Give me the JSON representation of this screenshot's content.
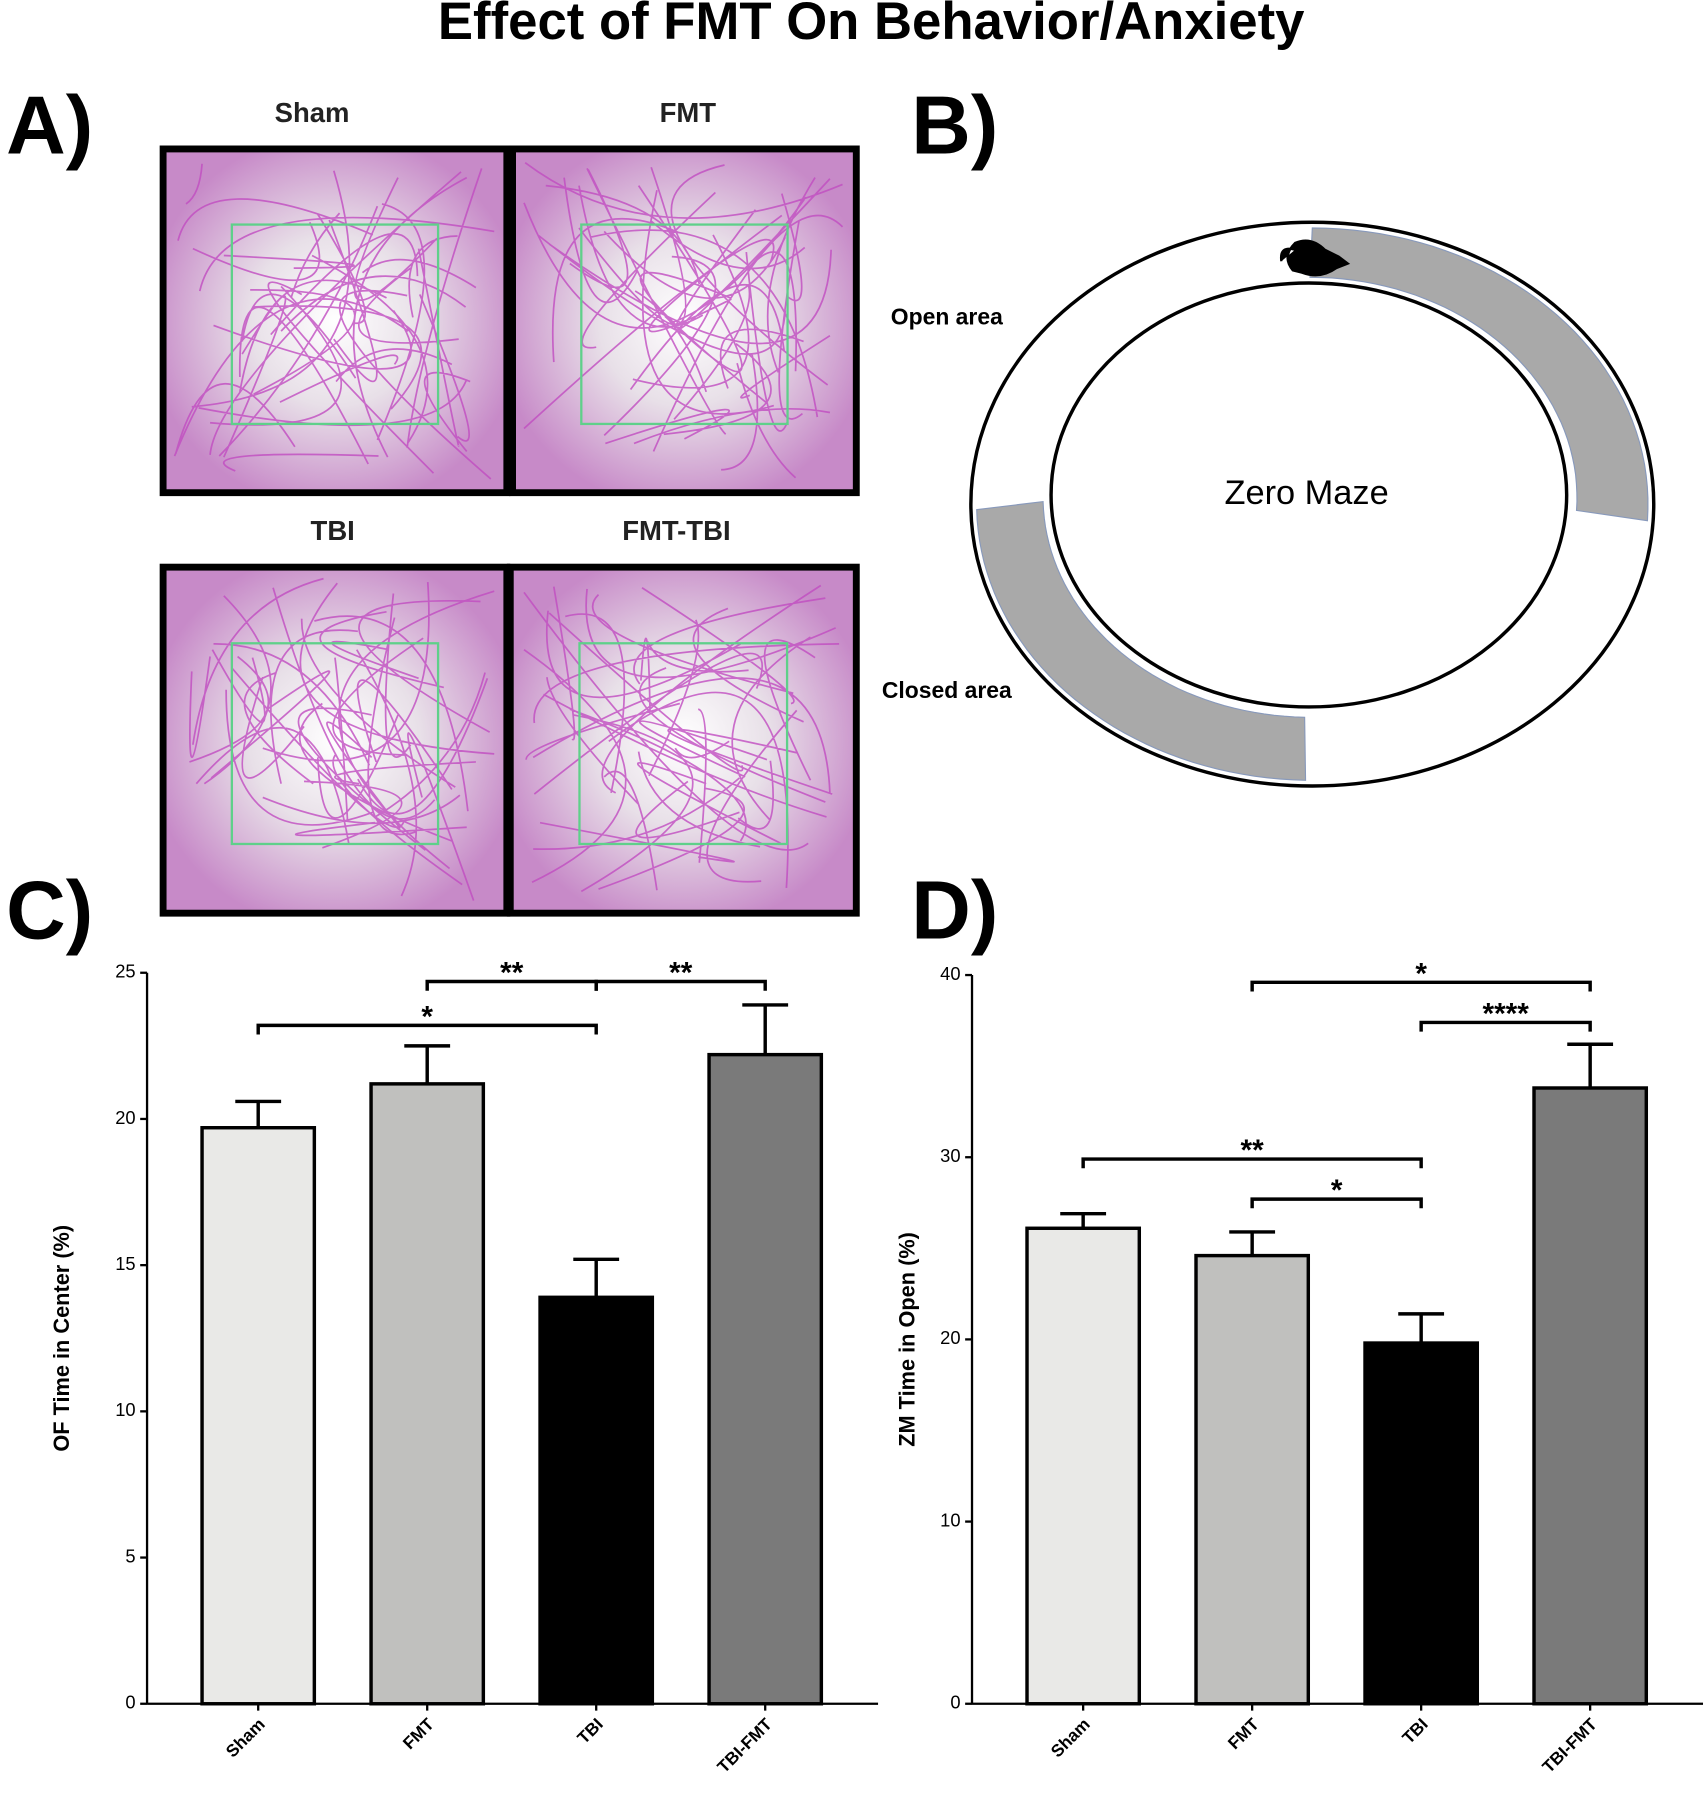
{
  "title": "Effect of FMT On Behavior/Anxiety",
  "open_field": {
    "label": "A)",
    "groups": [
      "Sham",
      "FMT",
      "TBI",
      "FMT-TBI"
    ]
  },
  "zero_maze": {
    "label": "B)",
    "center": "Zero Maze",
    "open": "Open area",
    "closed": "Closed area"
  },
  "chart_data": [
    {
      "type": "bar",
      "panel": "C)",
      "y_label": "OF Time in Center (%)",
      "categories": [
        "Sham",
        "FMT",
        "TBI",
        "TBI-FMT"
      ],
      "values": [
        19.7,
        21.2,
        13.9,
        22.2
      ],
      "errors": [
        0.9,
        1.3,
        1.3,
        1.7
      ],
      "colors": [
        "#e9e9e7",
        "#c0c0be",
        "#000000",
        "#7a7a7a"
      ],
      "ylim": [
        0,
        25
      ],
      "yticks": [
        0,
        5,
        10,
        15,
        20,
        25
      ],
      "significance": [
        {
          "between": [
            "FMT",
            "TBI"
          ],
          "y": 24.7,
          "label": "**"
        },
        {
          "between": [
            "TBI",
            "TBI-FMT"
          ],
          "y": 24.7,
          "label": "**"
        },
        {
          "between": [
            "Sham",
            "TBI"
          ],
          "y": 23.2,
          "label": "*"
        }
      ]
    },
    {
      "type": "bar",
      "panel": "D)",
      "y_label": "ZM Time in Open (%)",
      "categories": [
        "Sham",
        "FMT",
        "TBI",
        "TBI-FMT"
      ],
      "values": [
        26.1,
        24.6,
        19.8,
        33.8
      ],
      "errors": [
        0.8,
        1.3,
        1.6,
        2.4
      ],
      "colors": [
        "#e9e9e7",
        "#c0c0be",
        "#000000",
        "#7a7a7a"
      ],
      "ylim": [
        0,
        40
      ],
      "yticks": [
        0,
        10,
        20,
        30,
        40
      ],
      "significance": [
        {
          "between": [
            "FMT",
            "TBI-FMT"
          ],
          "y": 39.6,
          "label": "*"
        },
        {
          "between": [
            "TBI",
            "TBI-FMT"
          ],
          "y": 37.4,
          "label": "****"
        },
        {
          "between": [
            "Sham",
            "TBI"
          ],
          "y": 29.9,
          "label": "**"
        },
        {
          "between": [
            "FMT",
            "TBI"
          ],
          "y": 27.7,
          "label": "*"
        }
      ]
    }
  ]
}
